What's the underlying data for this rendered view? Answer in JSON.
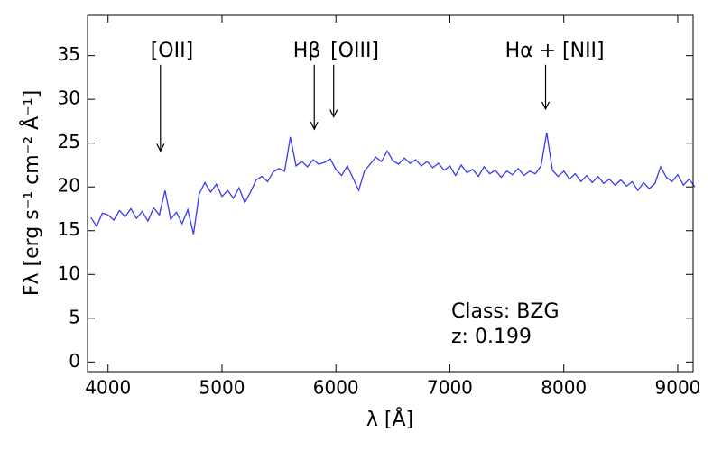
{
  "chart_data": {
    "type": "line",
    "xlabel": "λ [Å]",
    "ylabel": "Fλ [erg s⁻¹ cm⁻² Å⁻¹]",
    "x": [
      3850,
      3900,
      3950,
      4000,
      4050,
      4100,
      4150,
      4200,
      4250,
      4300,
      4350,
      4400,
      4450,
      4500,
      4550,
      4600,
      4650,
      4700,
      4750,
      4800,
      4850,
      4900,
      4950,
      5000,
      5050,
      5100,
      5150,
      5200,
      5250,
      5300,
      5350,
      5400,
      5450,
      5500,
      5550,
      5600,
      5650,
      5700,
      5750,
      5800,
      5850,
      5900,
      5950,
      6000,
      6050,
      6100,
      6150,
      6200,
      6250,
      6300,
      6350,
      6400,
      6450,
      6500,
      6550,
      6600,
      6650,
      6700,
      6750,
      6800,
      6850,
      6900,
      6950,
      7000,
      7050,
      7100,
      7150,
      7200,
      7250,
      7300,
      7350,
      7400,
      7450,
      7500,
      7550,
      7600,
      7650,
      7700,
      7750,
      7800,
      7850,
      7900,
      7950,
      8000,
      8050,
      8100,
      8150,
      8200,
      8250,
      8300,
      8350,
      8400,
      8450,
      8500,
      8550,
      8600,
      8650,
      8700,
      8750,
      8800,
      8850,
      8900,
      8950,
      9000,
      9050,
      9100,
      9150
    ],
    "series": [
      {
        "color": "#3a3af0",
        "values": [
          16.5,
          15.5,
          17,
          16.8,
          16.2,
          17.3,
          16.6,
          17.5,
          16.4,
          17.2,
          16.1,
          17.6,
          16.8,
          19.6,
          16.3,
          17.1,
          15.8,
          17.4,
          14.6,
          19.2,
          20.5,
          19.4,
          20.3,
          18.9,
          19.6,
          18.7,
          19.9,
          18.2,
          19.4,
          20.8,
          21.2,
          20.6,
          21.7,
          22.1,
          21.8,
          25.7,
          22.4,
          22.9,
          22.3,
          23.1,
          22.6,
          22.8,
          23.2,
          22.0,
          21.3,
          22.4,
          21.0,
          19.6,
          21.8,
          22.6,
          23.4,
          22.9,
          24.1,
          23.0,
          22.6,
          23.3,
          22.7,
          23.1,
          22.4,
          22.9,
          22.2,
          22.7,
          21.9,
          22.4,
          21.3,
          22.5,
          21.6,
          22.0,
          21.2,
          22.3,
          21.5,
          21.9,
          21.1,
          21.8,
          21.4,
          22.1,
          21.3,
          21.8,
          21.5,
          22.4,
          26.2,
          21.9,
          21.2,
          21.8,
          20.9,
          21.5,
          20.6,
          21.3,
          20.5,
          21.2,
          20.4,
          20.9,
          20.2,
          20.8,
          20.1,
          20.6,
          19.6,
          20.5,
          19.8,
          20.4,
          22.3,
          21.1,
          20.6,
          21.4,
          20.2,
          20.9,
          20.0
        ]
      }
    ],
    "xlim": [
      3820,
      9135
    ],
    "ylim": [
      -1.1,
      39.6
    ],
    "xticks": [
      4000,
      5000,
      6000,
      7000,
      8000,
      9000
    ],
    "yticks": [
      0,
      5,
      10,
      15,
      20,
      25,
      30,
      35
    ],
    "grid": false,
    "annotations": [
      {
        "text": "[OII]",
        "text_x": 4560,
        "y_text": 35.5,
        "x": 4460,
        "y": 24.1
      },
      {
        "text": "Hβ",
        "text_x": 5745,
        "y_text": 35.5,
        "x": 5810,
        "y": 26.6
      },
      {
        "text": "[OIII]",
        "text_x": 6165,
        "y_text": 35.5,
        "x": 5980,
        "y": 28.0
      },
      {
        "text": "Hα + [NII]",
        "text_x": 7920,
        "y_text": 35.5,
        "x": 7840,
        "y": 28.9
      }
    ],
    "info": [
      "Class: BZG",
      "z: 0.199"
    ]
  }
}
